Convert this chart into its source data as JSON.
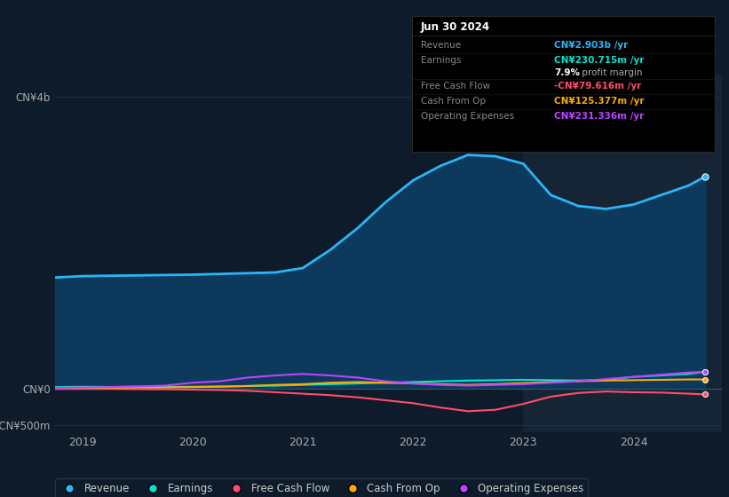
{
  "bg_color": "#0d1b2a",
  "plot_bg_color": "#0d1b2a",
  "grid_color": "#1e3a4a",
  "shaded_color": "#162535",
  "x_years": [
    2018.75,
    2019.0,
    2019.25,
    2019.5,
    2019.75,
    2020.0,
    2020.25,
    2020.5,
    2020.75,
    2021.0,
    2021.25,
    2021.5,
    2021.75,
    2022.0,
    2022.25,
    2022.5,
    2022.75,
    2023.0,
    2023.25,
    2023.5,
    2023.75,
    2024.0,
    2024.25,
    2024.5,
    2024.65
  ],
  "revenue": [
    1520,
    1540,
    1545,
    1550,
    1555,
    1560,
    1570,
    1580,
    1590,
    1650,
    1900,
    2200,
    2550,
    2850,
    3050,
    3200,
    3180,
    3080,
    2650,
    2500,
    2460,
    2520,
    2650,
    2780,
    2903
  ],
  "earnings": [
    20,
    25,
    22,
    25,
    22,
    25,
    30,
    35,
    40,
    50,
    60,
    70,
    80,
    90,
    100,
    110,
    115,
    120,
    115,
    110,
    120,
    160,
    180,
    200,
    231
  ],
  "fcf": [
    -5,
    -5,
    -5,
    -8,
    -10,
    -15,
    -20,
    -30,
    -50,
    -70,
    -90,
    -120,
    -160,
    -200,
    -260,
    -310,
    -290,
    -210,
    -110,
    -60,
    -40,
    -50,
    -55,
    -70,
    -80
  ],
  "cashfromop": [
    10,
    12,
    10,
    15,
    15,
    20,
    25,
    35,
    50,
    60,
    80,
    90,
    80,
    70,
    60,
    50,
    60,
    75,
    90,
    100,
    110,
    115,
    120,
    125,
    125
  ],
  "opex": [
    10,
    15,
    20,
    30,
    40,
    80,
    100,
    150,
    180,
    200,
    180,
    150,
    100,
    70,
    50,
    40,
    50,
    60,
    80,
    100,
    130,
    160,
    190,
    220,
    231
  ],
  "shaded_x_start": 2023.0,
  "ylim": [
    -600,
    4300
  ],
  "ytick_vals": [
    -500,
    0,
    4000
  ],
  "ytick_labels": [
    "-CN¥500m",
    "CN¥0",
    "CN¥4b"
  ],
  "xtick_vals": [
    2019,
    2020,
    2021,
    2022,
    2023,
    2024
  ],
  "revenue_color": "#29b6f6",
  "revenue_fill": "#0d3a5c",
  "earnings_color": "#00e5cc",
  "fcf_color": "#ff4d6d",
  "cashfromop_color": "#ffaa00",
  "opex_color": "#bb44ff",
  "zero_line_color": "#405060",
  "legend_items": [
    {
      "label": "Revenue",
      "color": "#29b6f6"
    },
    {
      "label": "Earnings",
      "color": "#00e5cc"
    },
    {
      "label": "Free Cash Flow",
      "color": "#ff4d6d"
    },
    {
      "label": "Cash From Op",
      "color": "#ffaa00"
    },
    {
      "label": "Operating Expenses",
      "color": "#bb44ff"
    }
  ],
  "info_box": {
    "date": "Jun 30 2024",
    "rows": [
      {
        "label": "Revenue",
        "value": "CN¥2.903b /yr",
        "value_color": "#29b6f6"
      },
      {
        "label": "Earnings",
        "value": "CN¥230.715m /yr",
        "value_color": "#00e5cc",
        "sub": "7.9% profit margin"
      },
      {
        "label": "Free Cash Flow",
        "value": "-CN¥79.616m /yr",
        "value_color": "#ff4d6d"
      },
      {
        "label": "Cash From Op",
        "value": "CN¥125.377m /yr",
        "value_color": "#ffaa00"
      },
      {
        "label": "Operating Expenses",
        "value": "CN¥231.336m /yr",
        "value_color": "#bb44ff"
      }
    ]
  }
}
